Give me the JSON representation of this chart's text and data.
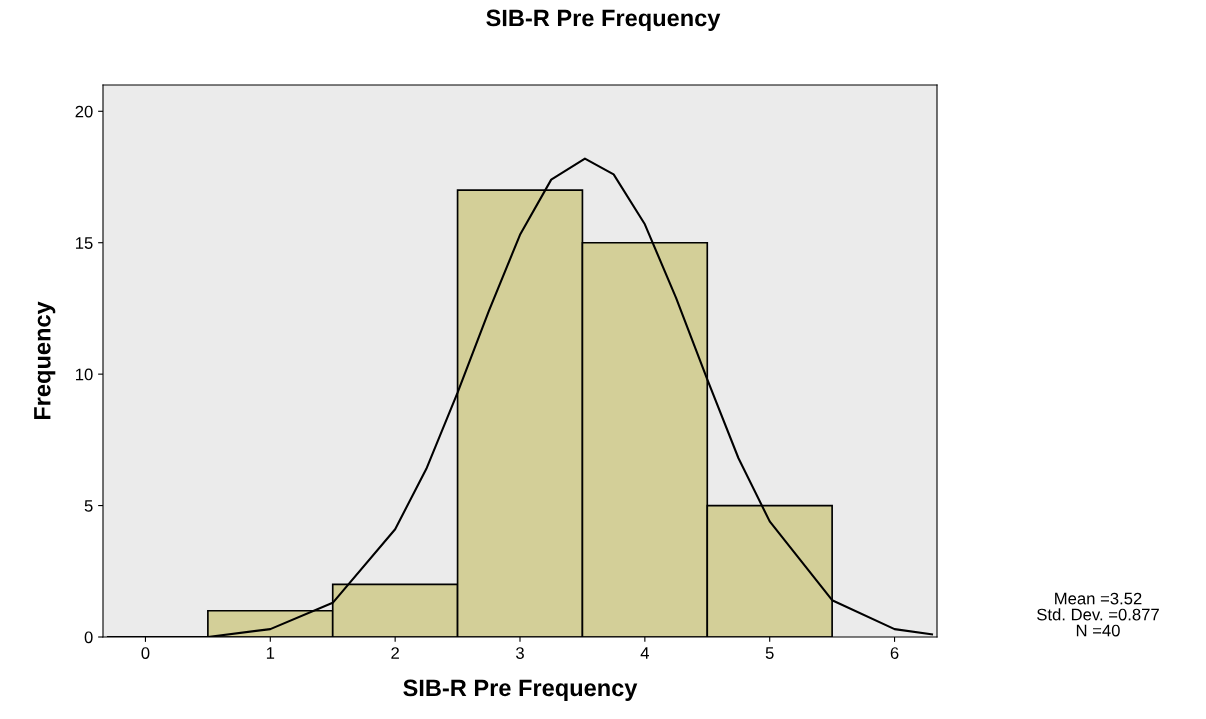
{
  "chart_data": {
    "type": "histogram",
    "title": "SIB-R Pre Frequency",
    "xlabel": "SIB-R Pre Frequency",
    "ylabel": "Frequency",
    "xlim": [
      -0.34,
      6.34
    ],
    "xticks": [
      0,
      1,
      2,
      3,
      4,
      5,
      6
    ],
    "ylim": [
      0,
      21
    ],
    "yticks": [
      0,
      5,
      10,
      15,
      20
    ],
    "grid": false,
    "series": [
      {
        "type": "histogram",
        "bins": [
          0.5,
          1.5,
          2.5,
          3.5,
          4.5,
          5.5
        ],
        "values": [
          1,
          2,
          17,
          15,
          5
        ],
        "color": "#d3cf98"
      },
      {
        "type": "line",
        "x": [
          -0.3,
          0,
          0.5,
          1,
          1.5,
          2,
          2.25,
          2.5,
          2.75,
          3,
          3.25,
          3.52,
          3.75,
          4,
          4.25,
          4.5,
          4.75,
          5,
          5.5,
          6,
          6.3
        ],
        "values": [
          0.0,
          0.0,
          0.0,
          0.3,
          1.3,
          4.1,
          6.4,
          9.3,
          12.4,
          15.3,
          17.4,
          18.2,
          17.6,
          15.7,
          12.9,
          9.8,
          6.8,
          4.4,
          1.4,
          0.3,
          0.1
        ],
        "color": "#000000"
      }
    ],
    "annotations": [
      "Mean =3.52",
      "Std. Dev. =0.877",
      "N =40"
    ]
  }
}
